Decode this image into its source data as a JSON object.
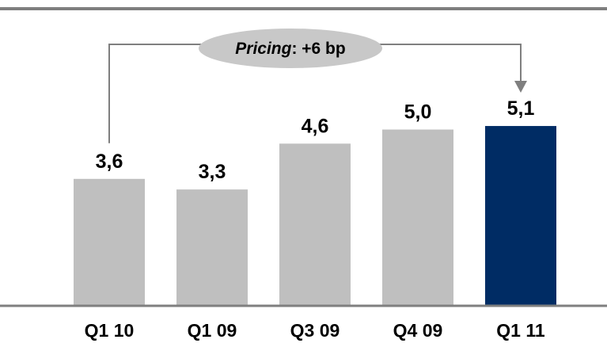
{
  "chart_data": {
    "type": "bar",
    "categories": [
      "Q1 10",
      "Q1 09",
      "Q3 09",
      "Q4 09",
      "Q1 11"
    ],
    "values": [
      3.6,
      3.3,
      4.6,
      5.0,
      5.1
    ],
    "value_labels": [
      "3,6",
      "3,3",
      "4,6",
      "5,0",
      "5,1"
    ],
    "title": "",
    "xlabel": "",
    "ylabel": "",
    "ylim": [
      0,
      5.9
    ],
    "grid": false,
    "legend": "none",
    "colors": {
      "bar": "#bfbfbf",
      "highlight": "#002c64",
      "axis": "#7f7f7f",
      "annotation_fill": "#c8c8c8",
      "connector": "#7f7f7f"
    },
    "highlight_index": 4,
    "annotation": {
      "italic_part": "Pricing",
      "rest": ": +6 bp",
      "from_index": 0,
      "to_index": 4
    }
  }
}
